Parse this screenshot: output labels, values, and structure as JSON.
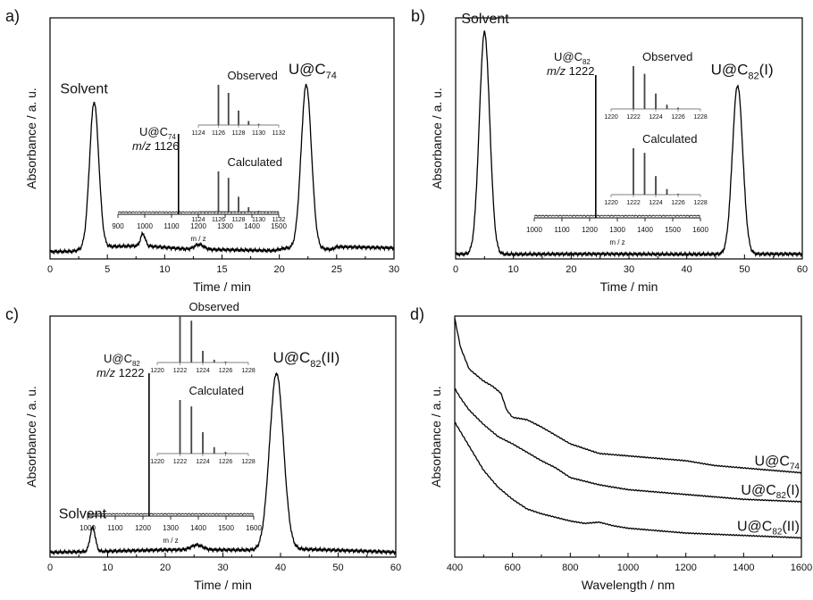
{
  "chart_data": [
    {
      "panel": "a)",
      "type": "line",
      "xlabel": "Time / min",
      "ylabel": "Absorbance / a. u.",
      "xlim": [
        0,
        30
      ],
      "xticks": [
        0,
        5,
        10,
        15,
        20,
        25,
        30
      ],
      "series": [
        {
          "baseline": [
            [
              0,
              0.03
            ],
            [
              2,
              0.032
            ],
            [
              3.6,
              0.05
            ],
            [
              8.1,
              0.055
            ],
            [
              12,
              0.04
            ],
            [
              19.5,
              0.035
            ],
            [
              20.5,
              0.045
            ],
            [
              24.6,
              0.04
            ],
            [
              25,
              0.05
            ],
            [
              30,
              0.045
            ]
          ],
          "peaks": [
            [
              3.85,
              0.6,
              0.4
            ],
            [
              8.1,
              0.05,
              0.2
            ],
            [
              13.0,
              0.02,
              0.4
            ],
            [
              22.35,
              0.68,
              0.45
            ]
          ]
        }
      ],
      "annotations": [
        {
          "text": "Solvent",
          "x": 3.85
        },
        {
          "text_main": "U@C",
          "text_sub": "74",
          "text_after": "",
          "x": 22.35
        }
      ],
      "ms_inset": {
        "xlabel": "m / z",
        "xlim": [
          900,
          1500
        ],
        "xticks": [
          900,
          1000,
          1100,
          1200,
          1300,
          1400,
          1500
        ],
        "peak_mz": 1126,
        "label_line1_main": "U@C",
        "label_line1_sub": "74",
        "label_line2_italic": "m/z",
        "label_line2_value": "1126"
      },
      "isotope_insets": [
        {
          "title": "Observed",
          "xticks": [
            "1124",
            "1126",
            "1128",
            "1130",
            "1132"
          ],
          "xlim": [
            1124,
            1132
          ],
          "lines": [
            [
              1126,
              1.0
            ],
            [
              1127,
              0.8
            ],
            [
              1128,
              0.36
            ],
            [
              1129,
              0.1
            ],
            [
              1130,
              0.03
            ]
          ]
        },
        {
          "title": "Calculated",
          "xticks": [
            "1124",
            "1126",
            "1128",
            "1130",
            "1132"
          ],
          "xlim": [
            1124,
            1132
          ],
          "lines": [
            [
              1126,
              1.0
            ],
            [
              1127,
              0.84
            ],
            [
              1128,
              0.37
            ],
            [
              1129,
              0.11
            ],
            [
              1130,
              0.02
            ]
          ]
        }
      ]
    },
    {
      "panel": "b)",
      "type": "line",
      "xlabel": "Time / min",
      "ylabel": "Absorbance / a. u.",
      "xlim": [
        0,
        60
      ],
      "xticks": [
        0,
        10,
        20,
        30,
        40,
        50,
        60
      ],
      "series": [
        {
          "baseline": [
            [
              0,
              0.02
            ],
            [
              2,
              0.02
            ],
            [
              60,
              0.02
            ]
          ],
          "peaks": [
            [
              5.0,
              0.92,
              0.9
            ],
            [
              48.8,
              0.7,
              0.9
            ]
          ]
        }
      ],
      "annotations": [
        {
          "text": "Solvent",
          "x": 5.0
        },
        {
          "text_main": "U@C",
          "text_sub": "82",
          "text_after": "(I)",
          "x": 48.8
        }
      ],
      "ms_inset": {
        "xlabel": "m / z",
        "xlim": [
          1000,
          1600
        ],
        "xticks": [
          1000,
          1100,
          1200,
          1300,
          1400,
          1500,
          1600
        ],
        "peak_mz": 1222,
        "label_line1_main": "U@C",
        "label_line1_sub": "82",
        "label_line2_italic": "m/z",
        "label_line2_value": "1222"
      },
      "isotope_insets": [
        {
          "title": "Observed",
          "xticks": [
            "1220",
            "1222",
            "1224",
            "1226",
            "1228"
          ],
          "xlim": [
            1220,
            1228
          ],
          "lines": [
            [
              1222,
              1.0
            ],
            [
              1223,
              0.82
            ],
            [
              1224,
              0.36
            ],
            [
              1225,
              0.1
            ],
            [
              1226,
              0.03
            ]
          ]
        },
        {
          "title": "Calculated",
          "xticks": [
            "1220",
            "1222",
            "1224",
            "1226",
            "1228"
          ],
          "xlim": [
            1220,
            1228
          ],
          "lines": [
            [
              1222,
              1.0
            ],
            [
              1223,
              0.9
            ],
            [
              1224,
              0.4
            ],
            [
              1225,
              0.12
            ],
            [
              1226,
              0.02
            ]
          ]
        }
      ]
    },
    {
      "panel": "c)",
      "type": "line",
      "xlabel": "Time / min",
      "ylabel": "Absorbance / a. u.",
      "xlim": [
        0,
        60
      ],
      "xticks": [
        0,
        10,
        20,
        30,
        40,
        50,
        60
      ],
      "series": [
        {
          "baseline": [
            [
              0,
              0.02
            ],
            [
              10,
              0.025
            ],
            [
              20,
              0.03
            ],
            [
              30,
              0.03
            ],
            [
              37,
              0.03
            ],
            [
              42,
              0.035
            ],
            [
              60,
              0.02
            ]
          ],
          "peaks": [
            [
              7.4,
              0.1,
              0.45
            ],
            [
              25.5,
              0.02,
              1.0
            ],
            [
              39.3,
              0.73,
              1.2
            ]
          ]
        }
      ],
      "annotations": [
        {
          "text": "Solvent",
          "x": 7.4
        },
        {
          "text_main": "U@C",
          "text_sub": "82",
          "text_after": "(II)",
          "x": 39.3
        }
      ],
      "ms_inset": {
        "xlabel": "m / z",
        "xlim": [
          1000,
          1600
        ],
        "xticks": [
          1000,
          1100,
          1200,
          1300,
          1400,
          1500,
          1600
        ],
        "peak_mz": 1222,
        "label_line1_main": "U@C",
        "label_line1_sub": "82",
        "label_line2_italic": "m/z",
        "label_line2_value": "1222"
      },
      "isotope_insets": [
        {
          "title": "Observed",
          "xticks": [
            "1220",
            "1222",
            "1224",
            "1226",
            "1228"
          ],
          "xlim": [
            1220,
            1228
          ],
          "lines": [
            [
              1222,
              1.0
            ],
            [
              1223,
              0.9
            ],
            [
              1224,
              0.25
            ],
            [
              1225,
              0.06
            ],
            [
              1226,
              0.02
            ]
          ]
        },
        {
          "title": "Calculated",
          "xticks": [
            "1220",
            "1222",
            "1224",
            "1226",
            "1228"
          ],
          "xlim": [
            1220,
            1228
          ],
          "lines": [
            [
              1222,
              1.0
            ],
            [
              1223,
              0.88
            ],
            [
              1224,
              0.4
            ],
            [
              1225,
              0.12
            ],
            [
              1226,
              0.03
            ]
          ]
        }
      ]
    },
    {
      "panel": "d)",
      "type": "line",
      "xlabel": "Wavelength / nm",
      "ylabel": "Absorbance / a. u.",
      "xlim": [
        400,
        1600
      ],
      "xticks": [
        400,
        600,
        800,
        1000,
        1200,
        1400,
        1600
      ],
      "series": [
        {
          "name_main": "U@C",
          "name_sub": "74",
          "name_after": "",
          "points": [
            [
              400,
              0.99
            ],
            [
              420,
              0.87
            ],
            [
              450,
              0.78
            ],
            [
              500,
              0.73
            ],
            [
              530,
              0.71
            ],
            [
              560,
              0.68
            ],
            [
              580,
              0.61
            ],
            [
              600,
              0.58
            ],
            [
              650,
              0.57
            ],
            [
              700,
              0.54
            ],
            [
              800,
              0.47
            ],
            [
              900,
              0.43
            ],
            [
              1000,
              0.42
            ],
            [
              1100,
              0.41
            ],
            [
              1200,
              0.4
            ],
            [
              1300,
              0.38
            ],
            [
              1400,
              0.37
            ],
            [
              1500,
              0.36
            ],
            [
              1600,
              0.35
            ]
          ]
        },
        {
          "name_main": "U@C",
          "name_sub": "82",
          "name_after": "(I)",
          "points": [
            [
              400,
              0.7
            ],
            [
              420,
              0.66
            ],
            [
              450,
              0.61
            ],
            [
              500,
              0.55
            ],
            [
              550,
              0.5
            ],
            [
              600,
              0.47
            ],
            [
              700,
              0.4
            ],
            [
              750,
              0.37
            ],
            [
              800,
              0.33
            ],
            [
              900,
              0.3
            ],
            [
              1000,
              0.28
            ],
            [
              1200,
              0.26
            ],
            [
              1400,
              0.24
            ],
            [
              1600,
              0.23
            ]
          ]
        },
        {
          "name_main": "U@C",
          "name_sub": "82",
          "name_after": "(II)",
          "points": [
            [
              400,
              0.56
            ],
            [
              430,
              0.5
            ],
            [
              460,
              0.44
            ],
            [
              500,
              0.36
            ],
            [
              550,
              0.29
            ],
            [
              600,
              0.24
            ],
            [
              650,
              0.2
            ],
            [
              700,
              0.18
            ],
            [
              800,
              0.15
            ],
            [
              850,
              0.14
            ],
            [
              900,
              0.145
            ],
            [
              950,
              0.13
            ],
            [
              1000,
              0.12
            ],
            [
              1200,
              0.1
            ],
            [
              1400,
              0.09
            ],
            [
              1600,
              0.08
            ]
          ]
        }
      ]
    }
  ]
}
